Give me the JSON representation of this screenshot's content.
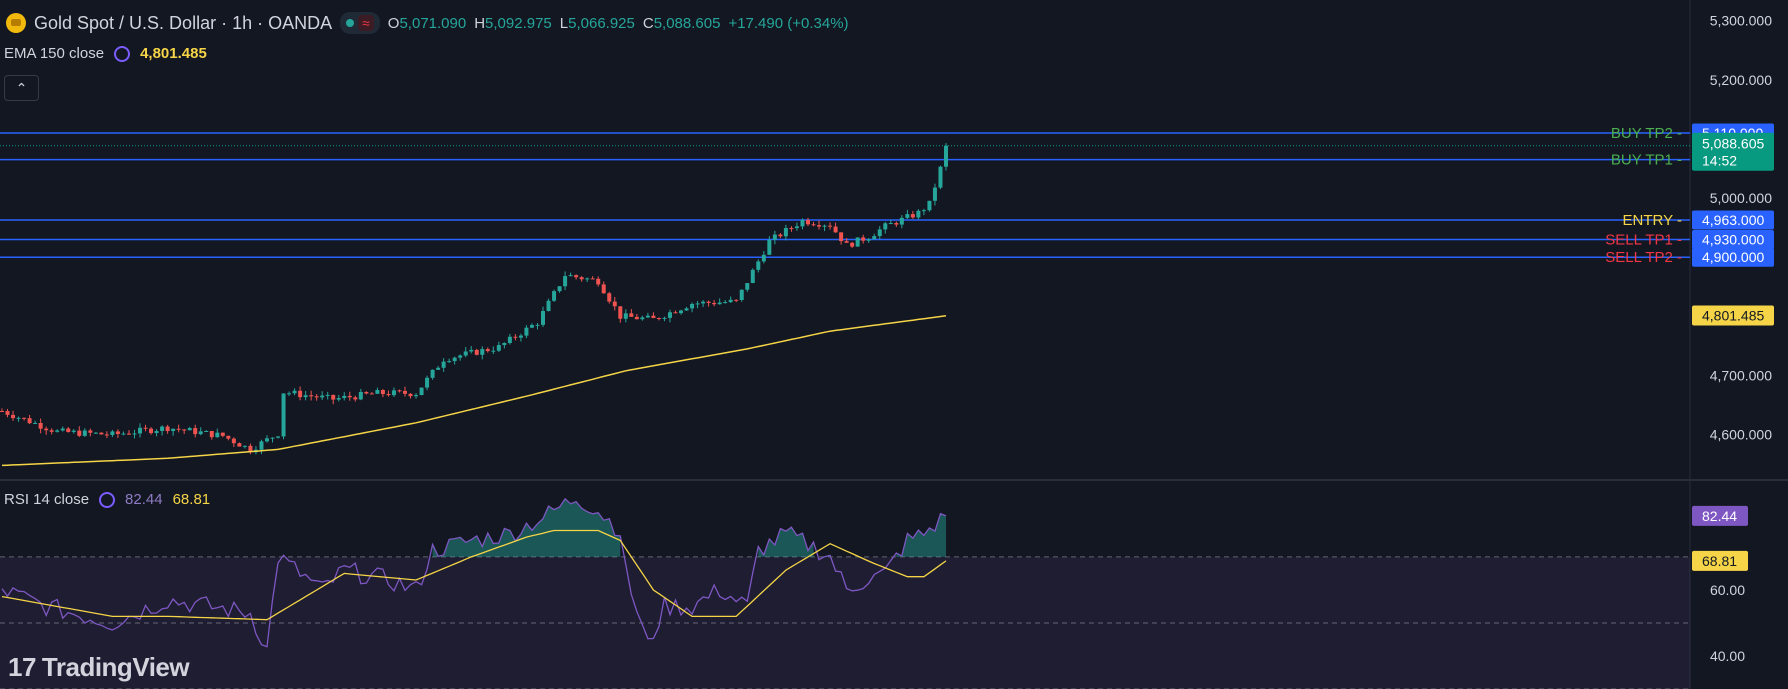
{
  "header": {
    "symbol": "Gold Spot / U.S. Dollar · 1h · OANDA",
    "ohlc": [
      {
        "key": "O",
        "value": "5,071.090"
      },
      {
        "key": "H",
        "value": "5,092.975"
      },
      {
        "key": "L",
        "value": "5,066.925"
      },
      {
        "key": "C",
        "value": "5,088.605"
      }
    ],
    "change": "+17.490 (+0.34%)",
    "status_icon": "market-open-dot",
    "wave_icon": "≈"
  },
  "ema": {
    "label": "EMA 150 close",
    "value": "4,801.485",
    "color": "#f5d547"
  },
  "collapse_icon": "chevron-up-icon",
  "rsi": {
    "label": "RSI 14 close",
    "value": "82.44",
    "ma_value": "68.81",
    "color": "#7e57c2",
    "ma_color": "#f5d547"
  },
  "branding": {
    "logo_text": "TradingView"
  },
  "chart_data": {
    "type": "candlestick",
    "price_axis": {
      "ticks": [
        "5,300.000",
        "5,200.000",
        "5,000.000",
        "4,700.000",
        "4,600.000"
      ],
      "tick_values": [
        5300,
        5200,
        5000,
        4700,
        4600
      ],
      "range": [
        4525,
        5335
      ]
    },
    "levels": [
      {
        "name": "BUY TP2",
        "price": 5110,
        "label": "5,110.000",
        "color": "#4caf50"
      },
      {
        "name": "BUY TP1",
        "price": 5065,
        "label": "5,065.000",
        "color": "#4caf50"
      },
      {
        "name": "ENTRY",
        "price": 4963,
        "label": "4,963.000",
        "color": "#f5d547"
      },
      {
        "name": "SELL TP1",
        "price": 4930,
        "label": "4,930.000",
        "color": "#f23645"
      },
      {
        "name": "SELL TP2",
        "price": 4900,
        "label": "4,900.000",
        "color": "#f23645"
      }
    ],
    "current_price": {
      "label": "5,088.605",
      "value": 5088.605,
      "countdown": "14:52",
      "color": "#089981"
    },
    "ema_label": {
      "label": "4,801.485",
      "value": 4801.485
    },
    "anchors": [
      [
        0,
        4640
      ],
      [
        10,
        4605
      ],
      [
        20,
        4600
      ],
      [
        30,
        4612
      ],
      [
        40,
        4598
      ],
      [
        45,
        4575
      ],
      [
        50,
        4602
      ],
      [
        51,
        4672
      ],
      [
        60,
        4660
      ],
      [
        68,
        4670
      ],
      [
        75,
        4670
      ],
      [
        80,
        4728
      ],
      [
        90,
        4748
      ],
      [
        97,
        4790
      ],
      [
        102,
        4870
      ],
      [
        108,
        4860
      ],
      [
        112,
        4800
      ],
      [
        118,
        4795
      ],
      [
        125,
        4822
      ],
      [
        133,
        4825
      ],
      [
        139,
        4927
      ],
      [
        145,
        4962
      ],
      [
        150,
        4955
      ],
      [
        153,
        4920
      ],
      [
        157,
        4935
      ],
      [
        160,
        4952
      ],
      [
        166,
        4975
      ],
      [
        168,
        4990
      ],
      [
        170,
        5050
      ],
      [
        171,
        5088
      ]
    ],
    "ema_anchors": [
      [
        0,
        4548
      ],
      [
        30,
        4560
      ],
      [
        50,
        4575
      ],
      [
        75,
        4620
      ],
      [
        95,
        4665
      ],
      [
        113,
        4708
      ],
      [
        135,
        4745
      ],
      [
        150,
        4775
      ],
      [
        171,
        4801
      ]
    ],
    "rsi_axis": {
      "ticks": [
        "60.00",
        "40.00"
      ],
      "tick_values": [
        60,
        40
      ],
      "range": [
        30,
        93
      ],
      "bands": [
        70,
        50,
        30
      ]
    },
    "rsi_anchors": [
      [
        0,
        60
      ],
      [
        8,
        55
      ],
      [
        20,
        50
      ],
      [
        30,
        57
      ],
      [
        45,
        53
      ],
      [
        48,
        42
      ],
      [
        50,
        70
      ],
      [
        58,
        60
      ],
      [
        62,
        66
      ],
      [
        70,
        63
      ],
      [
        75,
        60
      ],
      [
        78,
        72
      ],
      [
        85,
        75
      ],
      [
        92,
        77
      ],
      [
        98,
        82
      ],
      [
        104,
        88
      ],
      [
        108,
        84
      ],
      [
        112,
        78
      ],
      [
        113,
        65
      ],
      [
        117,
        43
      ],
      [
        120,
        55
      ],
      [
        125,
        55
      ],
      [
        130,
        60
      ],
      [
        135,
        55
      ],
      [
        137,
        72
      ],
      [
        142,
        77
      ],
      [
        147,
        73
      ],
      [
        150,
        70
      ],
      [
        153,
        60
      ],
      [
        155,
        62
      ],
      [
        160,
        65
      ],
      [
        164,
        75
      ],
      [
        167,
        77
      ],
      [
        171,
        82.44
      ]
    ],
    "rsi_ma_anchors": [
      [
        0,
        58
      ],
      [
        20,
        52
      ],
      [
        30,
        52
      ],
      [
        48,
        51
      ],
      [
        55,
        58
      ],
      [
        62,
        65
      ],
      [
        75,
        63
      ],
      [
        85,
        70
      ],
      [
        95,
        76
      ],
      [
        100,
        78
      ],
      [
        108,
        78
      ],
      [
        112,
        75
      ],
      [
        118,
        60
      ],
      [
        125,
        52
      ],
      [
        133,
        52
      ],
      [
        142,
        66
      ],
      [
        150,
        74
      ],
      [
        158,
        68
      ],
      [
        164,
        64
      ],
      [
        167,
        64
      ],
      [
        171,
        68.81
      ]
    ]
  }
}
